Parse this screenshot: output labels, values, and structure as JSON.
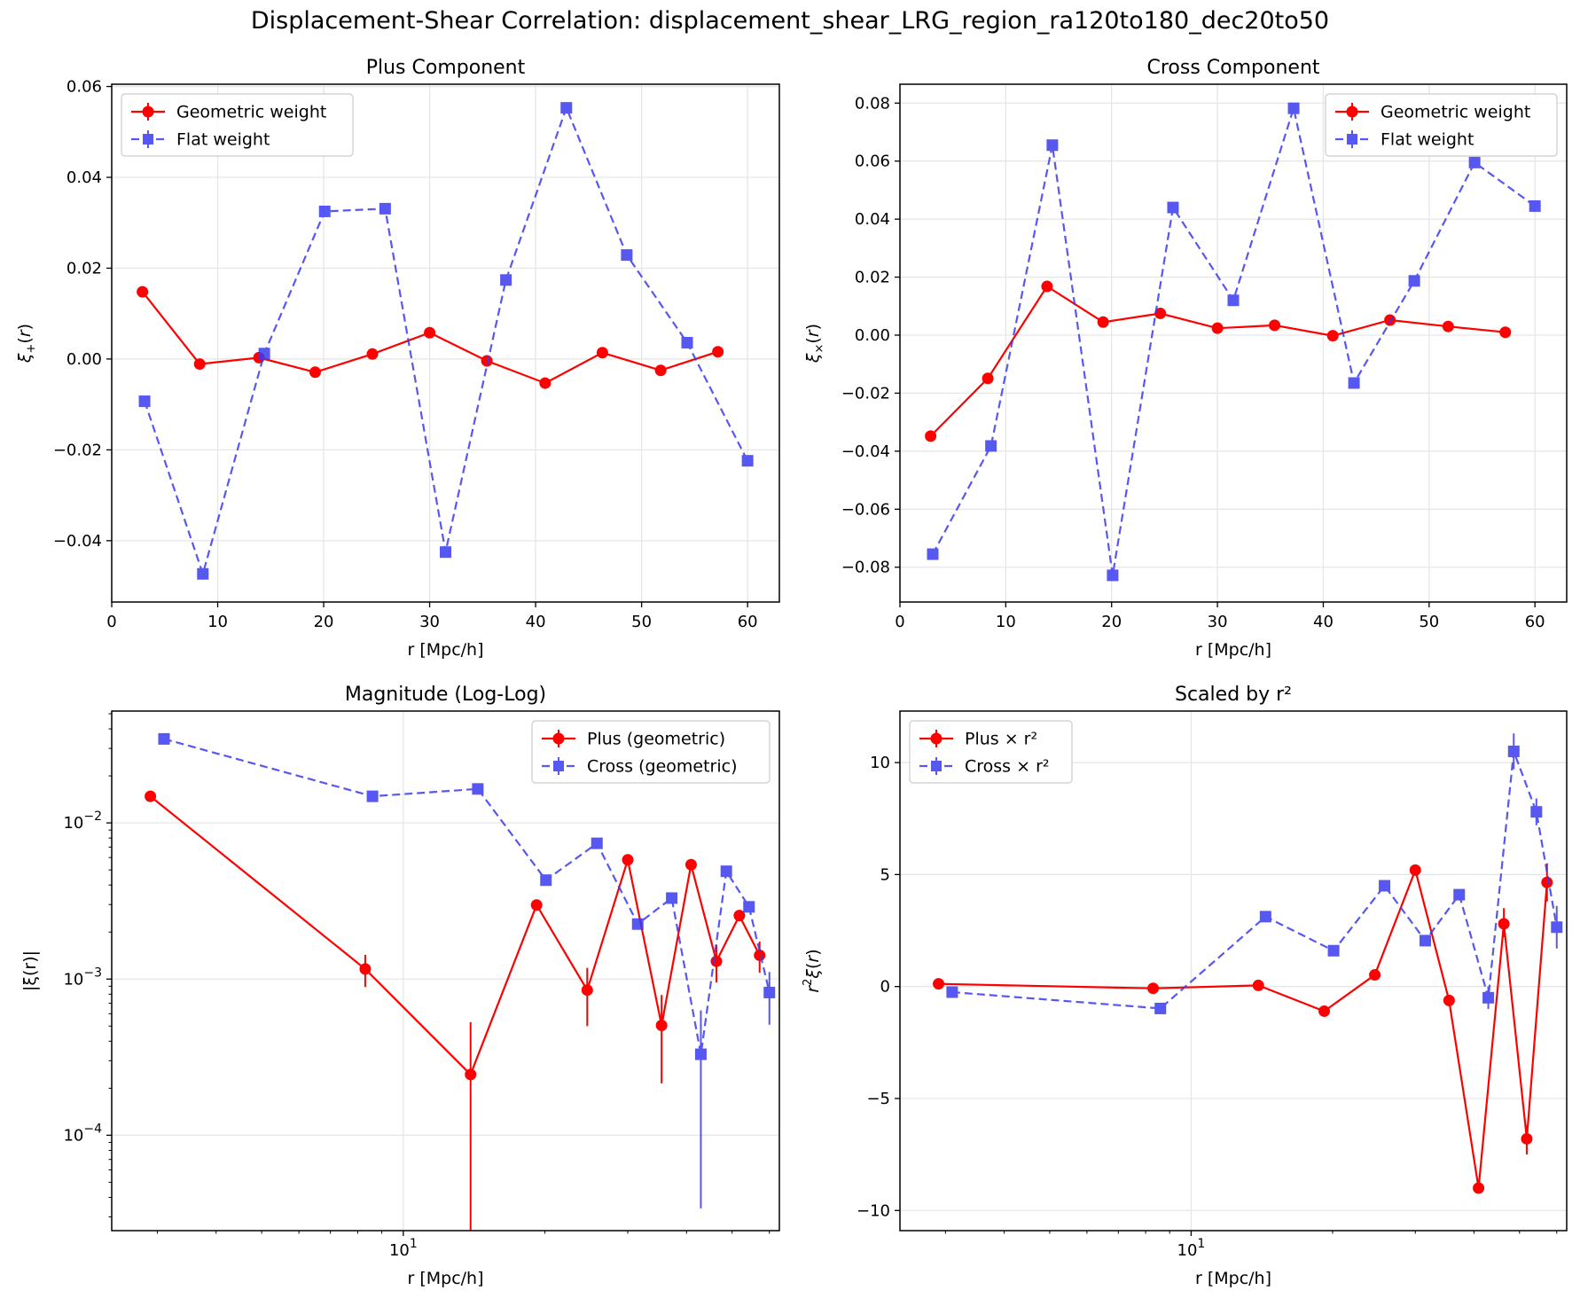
{
  "figure_title": "Displacement-Shear Correlation: displacement_shear_LRG_region_ra120to180_dec20to50",
  "colors": {
    "geometric": "#ff0000",
    "flat": "#3a3af0",
    "grid": "#e6e6e6",
    "axis": "#000000"
  },
  "chart_data": [
    {
      "type": "line",
      "title": "Plus Component",
      "xlabel": "r [Mpc/h]",
      "ylabel": "ξ+(r)",
      "xscale": "linear",
      "yscale": "linear",
      "xlim": [
        0,
        63
      ],
      "ylim": [
        -0.0535,
        0.0605
      ],
      "xticks": [
        0,
        10,
        20,
        30,
        40,
        50,
        60
      ],
      "xtick_labels": [
        "0",
        "10",
        "20",
        "30",
        "40",
        "50",
        "60"
      ],
      "yticks": [
        -0.04,
        -0.02,
        0.0,
        0.02,
        0.04,
        0.06
      ],
      "ytick_labels": [
        "−0.04",
        "−0.02",
        "0.00",
        "0.02",
        "0.04",
        "0.06"
      ],
      "grid": true,
      "legend_position": "upper left",
      "series": [
        {
          "name": "Geometric weight",
          "style": "geometric",
          "x": [
            2.9,
            8.3,
            13.9,
            19.2,
            24.6,
            30.0,
            35.4,
            40.9,
            46.3,
            51.8,
            57.2
          ],
          "y": [
            0.0148,
            -0.0011,
            0.0003,
            -0.0029,
            0.0011,
            0.0058,
            -0.0004,
            -0.0053,
            0.0014,
            -0.0025,
            0.0016
          ]
        },
        {
          "name": "Flat weight",
          "style": "flat",
          "x": [
            3.1,
            8.6,
            14.4,
            20.1,
            25.8,
            31.5,
            37.2,
            42.9,
            48.6,
            54.3,
            60.0
          ],
          "y": [
            -0.0093,
            -0.0473,
            0.0012,
            0.0325,
            0.0331,
            -0.0425,
            0.0174,
            0.0553,
            0.0229,
            0.0036,
            -0.0224
          ]
        }
      ]
    },
    {
      "type": "line",
      "title": "Cross Component",
      "xlabel": "r [Mpc/h]",
      "ylabel": "ξ×(r)",
      "xscale": "linear",
      "yscale": "linear",
      "xlim": [
        0,
        63
      ],
      "ylim": [
        -0.092,
        0.0865
      ],
      "xticks": [
        0,
        10,
        20,
        30,
        40,
        50,
        60
      ],
      "xtick_labels": [
        "0",
        "10",
        "20",
        "30",
        "40",
        "50",
        "60"
      ],
      "yticks": [
        -0.08,
        -0.06,
        -0.04,
        -0.02,
        0.0,
        0.02,
        0.04,
        0.06,
        0.08
      ],
      "ytick_labels": [
        "−0.08",
        "−0.06",
        "−0.04",
        "−0.02",
        "0.00",
        "0.02",
        "0.04",
        "0.06",
        "0.08"
      ],
      "grid": true,
      "legend_position": "upper right",
      "series": [
        {
          "name": "Geometric weight",
          "style": "geometric",
          "x": [
            2.9,
            8.3,
            13.9,
            19.2,
            24.6,
            30.0,
            35.4,
            40.9,
            46.3,
            51.8,
            57.2
          ],
          "y": [
            -0.0348,
            -0.0149,
            0.0168,
            0.0045,
            0.0075,
            0.0024,
            0.0034,
            -0.0002,
            0.0052,
            0.003,
            0.001
          ]
        },
        {
          "name": "Flat weight",
          "style": "flat",
          "x": [
            3.1,
            8.6,
            14.4,
            20.1,
            25.8,
            31.5,
            37.2,
            42.9,
            48.6,
            54.3,
            60.0
          ],
          "y": [
            -0.0755,
            -0.0382,
            0.0655,
            -0.0828,
            0.044,
            0.012,
            0.0782,
            -0.0165,
            0.0187,
            0.0595,
            0.0445
          ]
        }
      ]
    },
    {
      "type": "line",
      "title": "Magnitude (Log-Log)",
      "xlabel": "r [Mpc/h]",
      "ylabel": "|ξ(r)|",
      "xscale": "log",
      "yscale": "log",
      "xlim": [
        2.4,
        63
      ],
      "ylim": [
        2.45e-05,
        0.052
      ],
      "xticks": [
        10
      ],
      "xtick_labels": [
        "10^1"
      ],
      "yticks": [
        0.0001,
        0.001,
        0.01
      ],
      "ytick_labels": [
        "10^−4",
        "10^−3",
        "10^−2"
      ],
      "grid": true,
      "legend_position": "upper right",
      "series": [
        {
          "name": "Plus (geometric)",
          "style": "geometric",
          "x": [
            2.9,
            8.3,
            13.9,
            19.2,
            24.6,
            30.0,
            35.4,
            40.9,
            46.3,
            51.8,
            57.2
          ],
          "y": [
            0.0148,
            0.00116,
            0.000245,
            0.00298,
            0.00085,
            0.0058,
            0.000505,
            0.0054,
            0.0013,
            0.00255,
            0.00142
          ],
          "err_low": [
            0.0148,
            0.00089,
            2.45e-05,
            0.00298,
            0.0005,
            0.0058,
            0.000215,
            0.0054,
            0.00095,
            0.00255,
            0.0011
          ],
          "err_high": [
            0.0148,
            0.00143,
            0.00053,
            0.00298,
            0.00118,
            0.0058,
            0.00079,
            0.0054,
            0.00165,
            0.00255,
            0.00174
          ]
        },
        {
          "name": "Cross (geometric)",
          "style": "flat",
          "x": [
            3.1,
            8.6,
            14.4,
            20.1,
            25.8,
            31.5,
            37.2,
            42.9,
            48.6,
            54.3,
            60.0
          ],
          "y": [
            0.0345,
            0.0148,
            0.0165,
            0.0043,
            0.0074,
            0.00225,
            0.0033,
            0.00033,
            0.0049,
            0.0029,
            0.00082
          ],
          "err_low": [
            0.0345,
            0.0148,
            0.0165,
            0.0043,
            0.0074,
            0.00225,
            0.0033,
            3.4e-05,
            0.0049,
            0.0029,
            0.00051
          ],
          "err_high": [
            0.0345,
            0.0148,
            0.0165,
            0.0043,
            0.0074,
            0.00225,
            0.0033,
            0.00063,
            0.0049,
            0.0029,
            0.00111
          ]
        }
      ]
    },
    {
      "type": "line",
      "title": "Scaled by r²",
      "xlabel": "r [Mpc/h]",
      "ylabel": "r²ξ(r)",
      "xscale": "log",
      "yscale": "linear",
      "xlim": [
        2.4,
        63
      ],
      "ylim": [
        -10.9,
        12.3
      ],
      "xticks": [
        10
      ],
      "xtick_labels": [
        "10^1"
      ],
      "yticks": [
        -10,
        -5,
        0,
        5,
        10
      ],
      "ytick_labels": [
        "−10",
        "−5",
        "0",
        "5",
        "10"
      ],
      "grid": true,
      "legend_position": "upper left",
      "series": [
        {
          "name": "Plus × r²",
          "style": "geometric",
          "x": [
            2.9,
            8.3,
            13.9,
            19.2,
            24.6,
            30.0,
            35.4,
            40.9,
            46.3,
            51.8,
            57.2
          ],
          "y": [
            0.12,
            -0.08,
            0.05,
            -1.1,
            0.52,
            5.2,
            -0.62,
            -9.0,
            2.8,
            -6.8,
            4.65
          ],
          "err_low": [
            0.12,
            -0.08,
            0.05,
            -1.1,
            0.52,
            5.2,
            -0.62,
            -9.0,
            2.2,
            -7.5,
            3.8
          ],
          "err_high": [
            0.12,
            -0.08,
            0.05,
            -1.1,
            0.52,
            5.2,
            -0.62,
            -9.0,
            3.5,
            -6.2,
            5.5
          ]
        },
        {
          "name": "Cross × r²",
          "style": "flat",
          "x": [
            3.1,
            8.6,
            14.4,
            20.1,
            25.8,
            31.5,
            37.2,
            42.9,
            48.6,
            54.3,
            60.0
          ],
          "y": [
            -0.25,
            -0.98,
            3.12,
            1.6,
            4.5,
            2.05,
            4.1,
            -0.5,
            10.5,
            7.8,
            2.65
          ],
          "err_low": [
            -0.25,
            -0.98,
            3.12,
            1.6,
            4.5,
            2.05,
            4.1,
            -1.0,
            9.7,
            7.2,
            1.7
          ],
          "err_high": [
            -0.25,
            -0.98,
            3.12,
            1.6,
            4.5,
            2.05,
            4.1,
            0.0,
            11.3,
            8.4,
            3.6
          ]
        }
      ]
    }
  ]
}
